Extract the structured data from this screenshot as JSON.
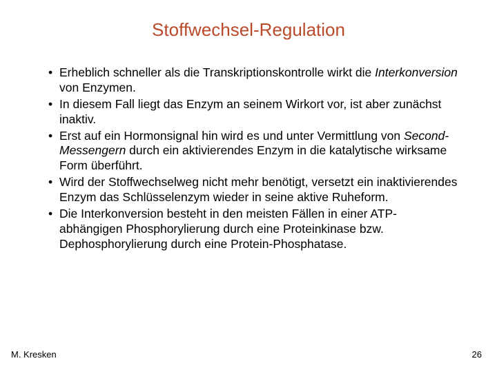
{
  "title": {
    "text": "Stoffwechsel-Regulation",
    "color": "#b84a2a",
    "fontsize": 26,
    "fontweight": "400"
  },
  "body": {
    "color": "#000000",
    "fontsize": 17.5,
    "line_height": 1.25
  },
  "bullets": [
    {
      "parts": [
        {
          "text": "Erheblich schneller als die Transkriptionskontrolle wirkt die ",
          "italic": false
        },
        {
          "text": "Interkonversion",
          "italic": true
        },
        {
          "text": " von Enzymen.",
          "italic": false
        }
      ]
    },
    {
      "parts": [
        {
          "text": "In diesem Fall liegt das Enzym an seinem Wirkort vor, ist aber zunächst inaktiv.",
          "italic": false
        }
      ]
    },
    {
      "parts": [
        {
          "text": "Erst auf ein Hormonsignal hin wird es und unter Vermittlung von ",
          "italic": false
        },
        {
          "text": "Second-Messengern",
          "italic": true
        },
        {
          "text": " durch ein aktivierendes Enzym in die katalytische wirksame Form überführt.",
          "italic": false
        }
      ]
    },
    {
      "parts": [
        {
          "text": "Wird der Stoffwechselweg nicht mehr benötigt, versetzt ein inaktivierendes Enzym das Schlüsselenzym wieder in seine aktive Ruheform.",
          "italic": false
        }
      ]
    },
    {
      "parts": [
        {
          "text": "Die Interkonversion besteht in den meisten Fällen in einer ATP-abhängigen Phosphorylierung durch eine Proteinkinase bzw. Dephosphorylierung durch eine Protein-Phosphatase.",
          "italic": false
        }
      ]
    }
  ],
  "footer": {
    "author": "M. Kresken",
    "page": "26",
    "color": "#000000",
    "fontsize": 13
  },
  "background_color": "#ffffff"
}
